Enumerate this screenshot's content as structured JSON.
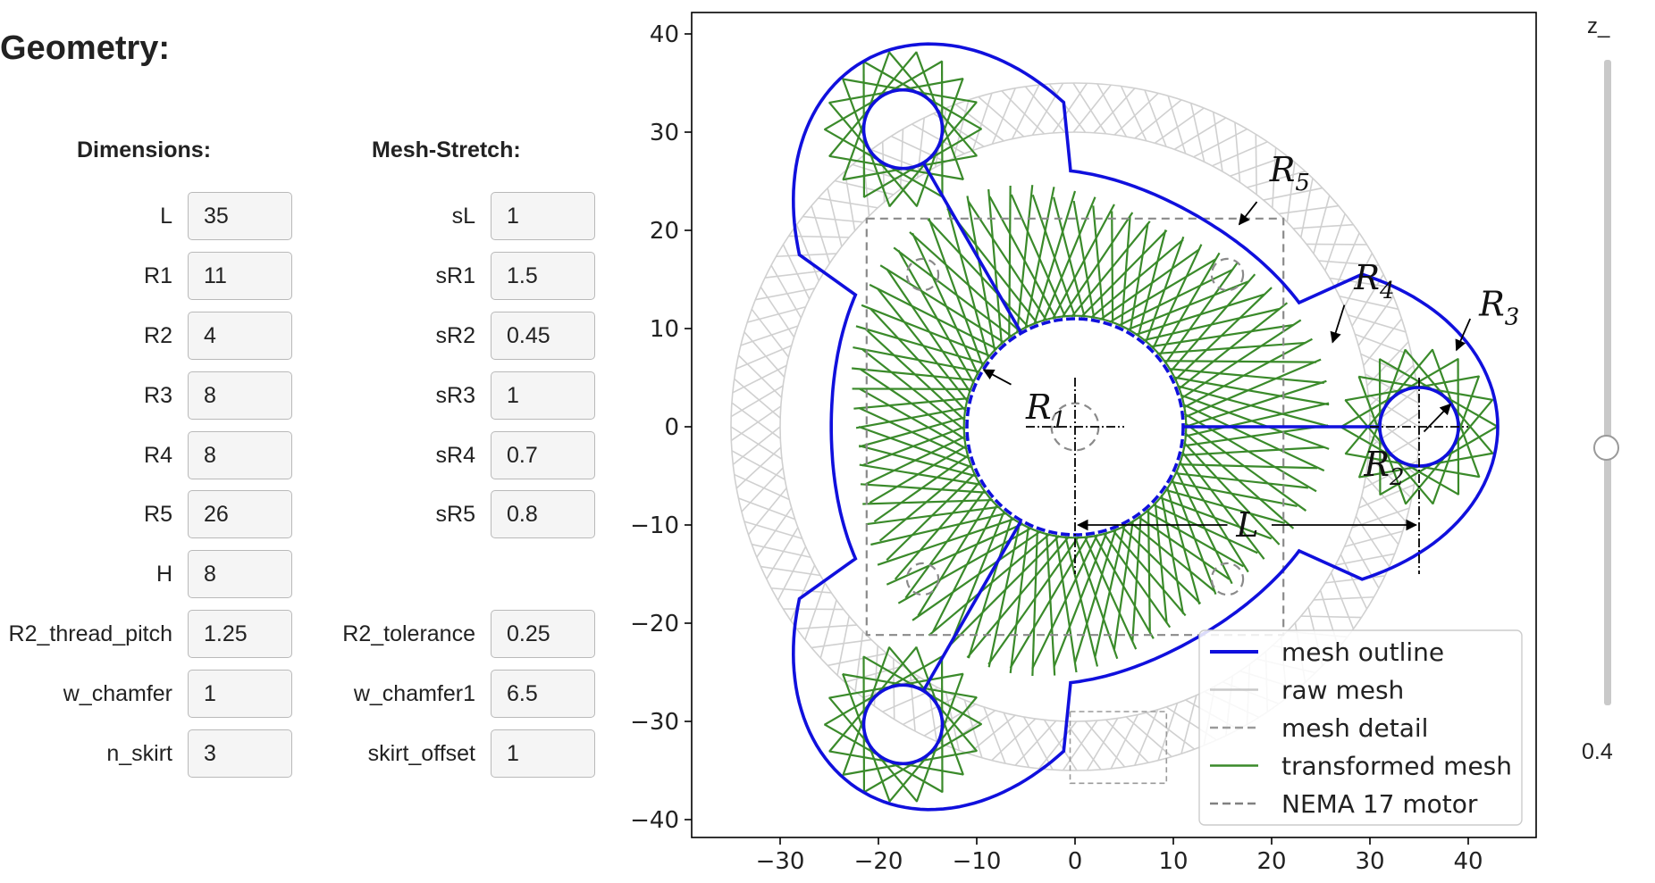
{
  "page": {
    "title": "Geometry:"
  },
  "dimensions": {
    "header": "Dimensions:",
    "fields": [
      {
        "label": "L",
        "value": "35"
      },
      {
        "label": "R1",
        "value": "11"
      },
      {
        "label": "R2",
        "value": "4"
      },
      {
        "label": "R3",
        "value": "8"
      },
      {
        "label": "R4",
        "value": "8"
      },
      {
        "label": "R5",
        "value": "26"
      },
      {
        "label": "H",
        "value": "8"
      },
      {
        "label": "R2_thread_pitch",
        "value": "1.25"
      },
      {
        "label": "w_chamfer",
        "value": "1"
      },
      {
        "label": "n_skirt",
        "value": "3"
      }
    ]
  },
  "mesh_stretch": {
    "header": "Mesh-Stretch:",
    "fields": [
      {
        "label": "sL",
        "value": "1"
      },
      {
        "label": "sR1",
        "value": "1.5"
      },
      {
        "label": "sR2",
        "value": "0.45"
      },
      {
        "label": "sR3",
        "value": "1"
      },
      {
        "label": "sR4",
        "value": "0.7"
      },
      {
        "label": "sR5",
        "value": "0.8"
      },
      {
        "label": "R2_tolerance",
        "value": "0.25"
      },
      {
        "label": "w_chamfer1",
        "value": "6.5"
      },
      {
        "label": "skirt_offset",
        "value": "1"
      }
    ]
  },
  "slider": {
    "label": "z_",
    "value": 0.4,
    "display": "0.4",
    "min": 0,
    "max": 1
  },
  "chart_data": {
    "type": "geometry-plot",
    "xlim": [
      -39,
      47
    ],
    "ylim": [
      -42,
      42
    ],
    "x_ticks": [
      -30,
      -20,
      -10,
      0,
      10,
      20,
      30,
      40
    ],
    "y_ticks": [
      40,
      30,
      20,
      10,
      0,
      -10,
      -20,
      -30,
      -40
    ],
    "x_tick_labels": [
      "−30",
      "−20",
      "−10",
      "0",
      "10",
      "20",
      "30",
      "40"
    ],
    "y_tick_labels": [
      "40",
      "30",
      "20",
      "10",
      "0",
      "−10",
      "−20",
      "−30",
      "−40"
    ],
    "grid": false,
    "legend": {
      "position": "lower-right",
      "entries": [
        {
          "label": "mesh outline",
          "color": "#1010dd",
          "style": "solid"
        },
        {
          "label": "raw mesh",
          "color": "#c8c8c8",
          "style": "solid"
        },
        {
          "label": "mesh detail",
          "color": "#9a9a9a",
          "style": "dashed"
        },
        {
          "label": "transformed mesh",
          "color": "#3a8a2a",
          "style": "solid"
        },
        {
          "label": "NEMA 17 motor",
          "color": "#808080",
          "style": "dashed"
        }
      ]
    },
    "dimension_labels": {
      "R1": {
        "main": "R",
        "sub": "1"
      },
      "R2": {
        "main": "R",
        "sub": "2"
      },
      "R3": {
        "main": "R",
        "sub": "3"
      },
      "R4": {
        "main": "R",
        "sub": "4"
      },
      "R5": {
        "main": "R",
        "sub": "5"
      },
      "L": "L"
    },
    "colors": {
      "outline": "#1010dd",
      "raw_mesh": "#d0d0d0",
      "transformed": "#3a8a2a",
      "nema": "#8a8a8a"
    }
  }
}
